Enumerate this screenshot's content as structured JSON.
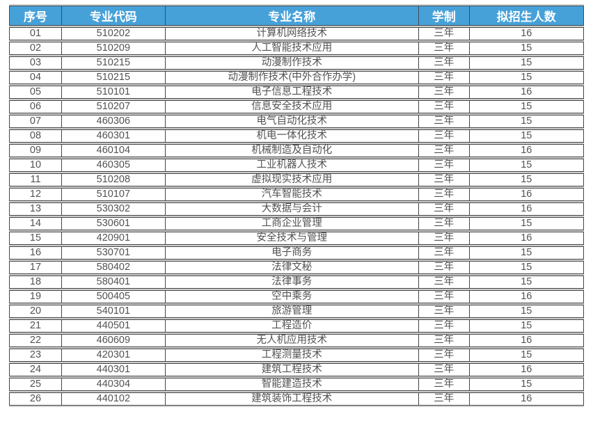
{
  "table": {
    "headers": [
      "序号",
      "专业代码",
      "专业名称",
      "学制",
      "拟招生人数"
    ],
    "header_bg": "#47A1D9",
    "header_text_color": "#ffffff",
    "border_color": "#454545",
    "gap_color": "#cfcfcf",
    "body_text_color": "#525252",
    "rows": [
      {
        "no": "01",
        "code": "510202",
        "name": "计算机网络技术",
        "duration": "三年",
        "count": "16"
      },
      {
        "no": "02",
        "code": "510209",
        "name": "人工智能技术应用",
        "duration": "三年",
        "count": "15"
      },
      {
        "no": "03",
        "code": "510215",
        "name": "动漫制作技术",
        "duration": "三年",
        "count": "15"
      },
      {
        "no": "04",
        "code": "510215",
        "name": "动漫制作技术(中外合作办学)",
        "duration": "三年",
        "count": "15"
      },
      {
        "no": "05",
        "code": "510101",
        "name": "电子信息工程技术",
        "duration": "三年",
        "count": "16"
      },
      {
        "no": "06",
        "code": "510207",
        "name": "信息安全技术应用",
        "duration": "三年",
        "count": "15"
      },
      {
        "no": "07",
        "code": "460306",
        "name": "电气自动化技术",
        "duration": "三年",
        "count": "15"
      },
      {
        "no": "08",
        "code": "460301",
        "name": "机电一体化技术",
        "duration": "三年",
        "count": "15"
      },
      {
        "no": "09",
        "code": "460104",
        "name": "机械制造及自动化",
        "duration": "三年",
        "count": "16"
      },
      {
        "no": "10",
        "code": "460305",
        "name": "工业机器人技术",
        "duration": "三年",
        "count": "15"
      },
      {
        "no": "11",
        "code": "510208",
        "name": "虚拟现实技术应用",
        "duration": "三年",
        "count": "15"
      },
      {
        "no": "12",
        "code": "510107",
        "name": "汽车智能技术",
        "duration": "三年",
        "count": "16"
      },
      {
        "no": "13",
        "code": "530302",
        "name": "大数据与会计",
        "duration": "三年",
        "count": "16"
      },
      {
        "no": "14",
        "code": "530601",
        "name": "工商企业管理",
        "duration": "三年",
        "count": "15"
      },
      {
        "no": "15",
        "code": "420901",
        "name": "安全技术与管理",
        "duration": "三年",
        "count": "16"
      },
      {
        "no": "16",
        "code": "530701",
        "name": "电子商务",
        "duration": "三年",
        "count": "15"
      },
      {
        "no": "17",
        "code": "580402",
        "name": "法律文秘",
        "duration": "三年",
        "count": "15"
      },
      {
        "no": "18",
        "code": "580401",
        "name": "法律事务",
        "duration": "三年",
        "count": "15"
      },
      {
        "no": "19",
        "code": "500405",
        "name": "空中乘务",
        "duration": "三年",
        "count": "16"
      },
      {
        "no": "20",
        "code": "540101",
        "name": "旅游管理",
        "duration": "三年",
        "count": "15"
      },
      {
        "no": "21",
        "code": "440501",
        "name": "工程造价",
        "duration": "三年",
        "count": "15"
      },
      {
        "no": "22",
        "code": "460609",
        "name": "无人机应用技术",
        "duration": "三年",
        "count": "16"
      },
      {
        "no": "23",
        "code": "420301",
        "name": "工程测量技术",
        "duration": "三年",
        "count": "15"
      },
      {
        "no": "24",
        "code": "440301",
        "name": "建筑工程技术",
        "duration": "三年",
        "count": "16"
      },
      {
        "no": "25",
        "code": "440304",
        "name": "智能建造技术",
        "duration": "三年",
        "count": "15"
      },
      {
        "no": "26",
        "code": "440102",
        "name": "建筑装饰工程技术",
        "duration": "三年",
        "count": "16"
      }
    ]
  }
}
